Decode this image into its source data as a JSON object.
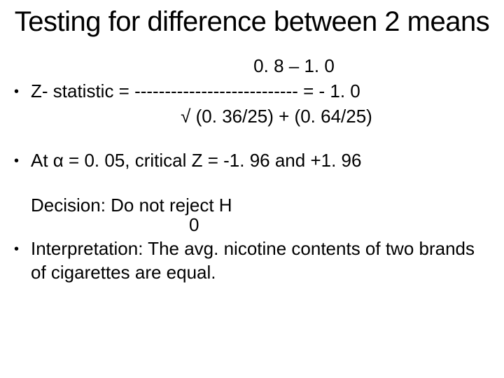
{
  "title": "Testing for difference between 2 means",
  "numerator": "0. 8 – 1. 0",
  "z_stat_line": "Z- statistic =  ---------------------------  = - 1. 0",
  "denominator": "√ (0. 36/25) + (0. 64/25)",
  "alpha_line": "At α = 0. 05, critical Z = -1. 96 and +1. 96",
  "decision_line": "Decision:  Do not reject H",
  "decision_sub": "0",
  "interpretation": "Interpretation: The avg. nicotine contents of two brands of cigarettes are equal.",
  "colors": {
    "background": "#ffffff",
    "text": "#000000"
  },
  "typography": {
    "title_fontsize": 40,
    "body_fontsize": 26,
    "font_family": "Arial"
  }
}
